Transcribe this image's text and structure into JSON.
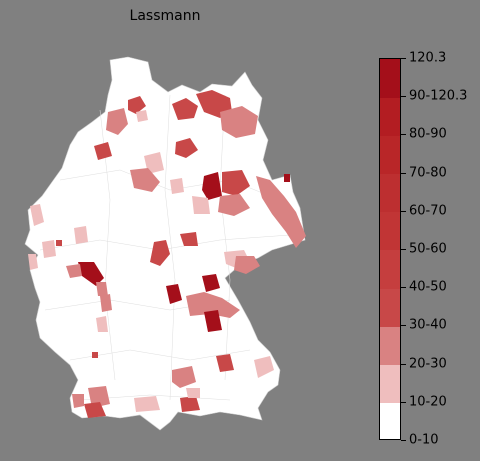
{
  "title": "Lassmann",
  "colorbar": {
    "labels": [
      "0-10",
      "10-20",
      "20-30",
      "30-40",
      "40-50",
      "50-60",
      "60-70",
      "70-80",
      "80-90",
      "90-120.3",
      "120.3"
    ],
    "colors": [
      "#ffffff",
      "#efbebe",
      "#d98282",
      "#c84848",
      "#c53e3e",
      "#c13535",
      "#bd2f30",
      "#b92628",
      "#b31d22",
      "#a40f1a"
    ]
  },
  "map": {
    "land_color": "#ffffff",
    "border_color": "#c8c8c8"
  }
}
